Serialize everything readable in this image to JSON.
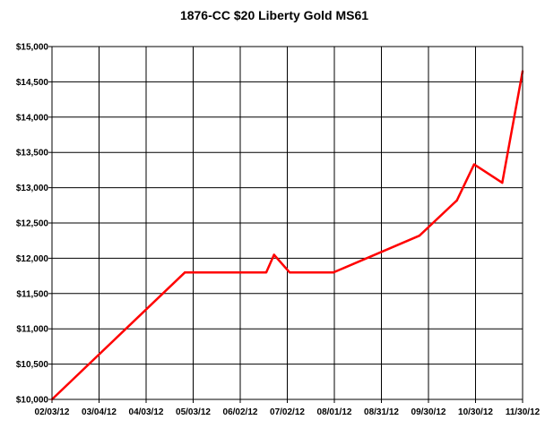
{
  "chart_data": {
    "type": "line",
    "title": "1876-CC $20 Liberty Gold MS61",
    "xlabel": "",
    "ylabel": "",
    "x_ticks": [
      "02/03/12",
      "03/04/12",
      "04/03/12",
      "05/03/12",
      "06/02/12",
      "07/02/12",
      "08/01/12",
      "08/31/12",
      "09/30/12",
      "10/30/12",
      "11/30/12"
    ],
    "y_ticks": [
      "$10,000",
      "$10,500",
      "$11,000",
      "$11,500",
      "$12,000",
      "$12,500",
      "$13,000",
      "$13,500",
      "$14,000",
      "$14,500",
      "$15,000"
    ],
    "ylim": [
      10000,
      15000
    ],
    "xlim": [
      "02/03/12",
      "11/30/12"
    ],
    "grid": true,
    "series": [
      {
        "color": "#ff0000",
        "points": [
          {
            "x": "02/03/12",
            "y": 10000
          },
          {
            "x": "04/28/12",
            "y": 11800
          },
          {
            "x": "06/19/12",
            "y": 11800
          },
          {
            "x": "06/24/12",
            "y": 12050
          },
          {
            "x": "07/04/12",
            "y": 11800
          },
          {
            "x": "08/01/12",
            "y": 11800
          },
          {
            "x": "09/25/12",
            "y": 12320
          },
          {
            "x": "10/19/12",
            "y": 12820
          },
          {
            "x": "10/30/12",
            "y": 13330
          },
          {
            "x": "11/17/12",
            "y": 13070
          },
          {
            "x": "11/30/12",
            "y": 14650
          }
        ]
      }
    ]
  }
}
